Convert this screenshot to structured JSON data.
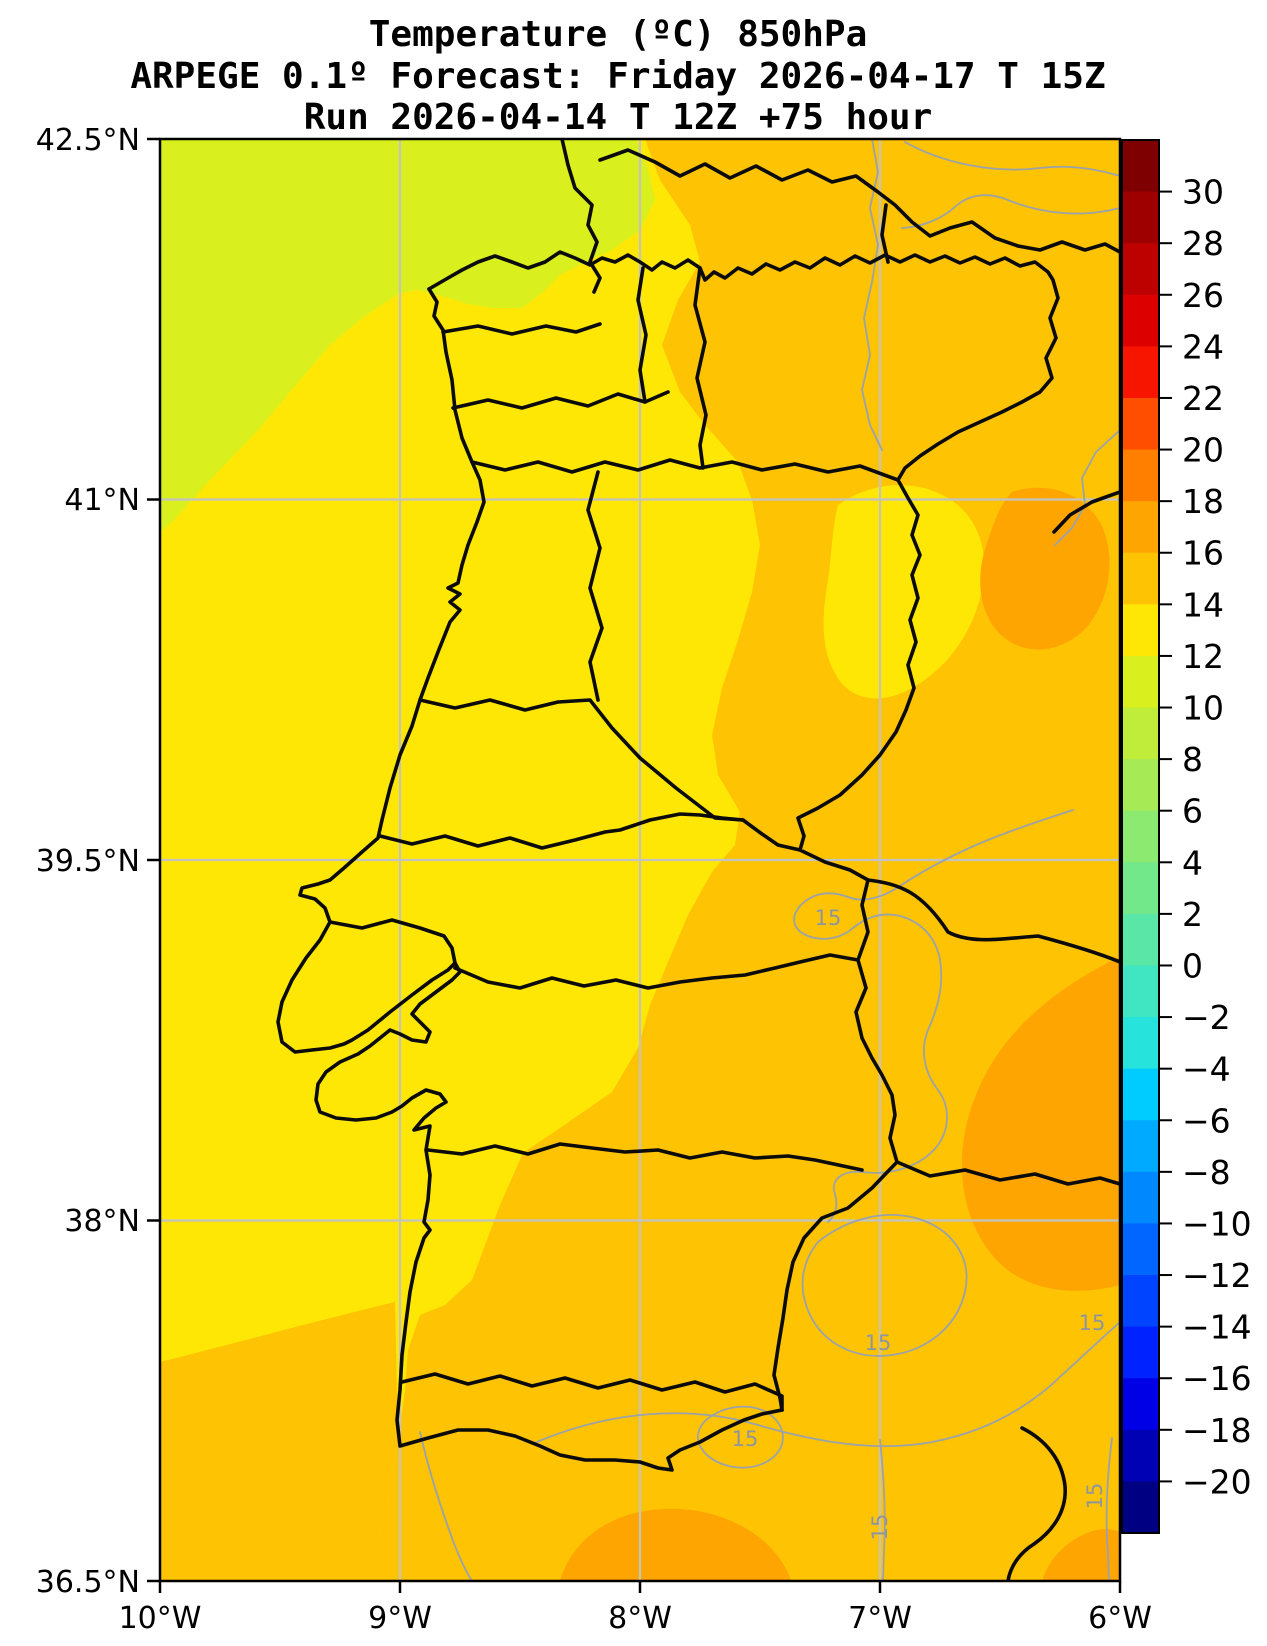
{
  "title": {
    "line1": "Temperature (ºC) 850hPa",
    "line2": "ARPEGE 0.1º Forecast: Friday 2026-04-17 T 15Z",
    "line3": "Run 2026-04-14 T 12Z +75 hour"
  },
  "axes": {
    "y_ticks": [
      "42.5°N",
      "41°N",
      "39.5°N",
      "38°N",
      "36.5°N"
    ],
    "x_ticks": [
      "10°W",
      "9°W",
      "8°W",
      "7°W",
      "6°W"
    ]
  },
  "colorbar": {
    "tick_labels": [
      "30",
      "28",
      "26",
      "24",
      "22",
      "20",
      "18",
      "16",
      "14",
      "12",
      "10",
      "8",
      "6",
      "4",
      "2",
      "0",
      "−2",
      "−4",
      "−6",
      "−8",
      "−10",
      "−12",
      "−14",
      "−16",
      "−18",
      "−20"
    ],
    "segment_colors": [
      "#7f0000",
      "#9e0000",
      "#bd0000",
      "#dc0000",
      "#f81500",
      "#ff4e00",
      "#ff8000",
      "#ffa502",
      "#fec303",
      "#ffe705",
      "#d9ef1e",
      "#c0ed3a",
      "#a6eb55",
      "#8dea70",
      "#73e88b",
      "#59e6a6",
      "#40e5c1",
      "#26e3dc",
      "#00ccff",
      "#00aaff",
      "#0088ff",
      "#0066ff",
      "#0044ff",
      "#0022ff",
      "#0000e6",
      "#0000b4",
      "#000082"
    ]
  },
  "map": {
    "band_colors": {
      "c10_12": "#d9ef1e",
      "c12_14": "#ffe705",
      "c14_16": "#fec303",
      "c16_18": "#ffa502"
    },
    "grid_color": "#c3c3c3",
    "boundary_color": "#0b0b0b",
    "contour_color": "#9aa2ab",
    "contour_label": "15"
  },
  "chart_data": {
    "type": "filled_contour_map",
    "title": "Temperature (ºC) 850hPa",
    "model": "ARPEGE 0.1º",
    "forecast_valid": "Friday 2026-04-17 T 15Z",
    "run": "2026-04-14 T 12Z",
    "lead_time_hours": 75,
    "region": "Portugal and western Spain",
    "x_axis": {
      "label": "longitude",
      "ticks": [
        "10°W",
        "9°W",
        "8°W",
        "7°W",
        "6°W"
      ],
      "range": [
        "10°W",
        "6°W"
      ],
      "grid": true
    },
    "y_axis": {
      "label": "latitude",
      "ticks": [
        "42.5°N",
        "41°N",
        "39.5°N",
        "38°N",
        "36.5°N"
      ],
      "range": [
        "36.5°N",
        "42.5°N"
      ],
      "grid": true
    },
    "colorbar": {
      "units": "ºC",
      "ticks": [
        30,
        28,
        26,
        24,
        22,
        20,
        18,
        16,
        14,
        12,
        10,
        8,
        6,
        4,
        2,
        0,
        -2,
        -4,
        -6,
        -8,
        -10,
        -12,
        -14,
        -16,
        -18,
        -20
      ],
      "range": [
        -22,
        32
      ],
      "interval": 2,
      "position": "right"
    },
    "visible_temperature_bands": [
      {
        "value_range": [
          10,
          12
        ],
        "color": "#d9ef1e",
        "area": "northwest Atlantic corner and far north near 42.5N"
      },
      {
        "value_range": [
          12,
          14
        ],
        "color": "#ffe705",
        "area": "most of Portugal and adjacent Atlantic ocean"
      },
      {
        "value_range": [
          14,
          16
        ],
        "color": "#fec303",
        "area": "eastern Spain side, Alentejo south, Algarve and SW ocean corner"
      },
      {
        "value_range": [
          16,
          18
        ],
        "color": "#ffa502",
        "area": "southeast interior blob, east edge patch and south coast patches"
      }
    ],
    "labeled_contour_values": [
      15
    ]
  }
}
